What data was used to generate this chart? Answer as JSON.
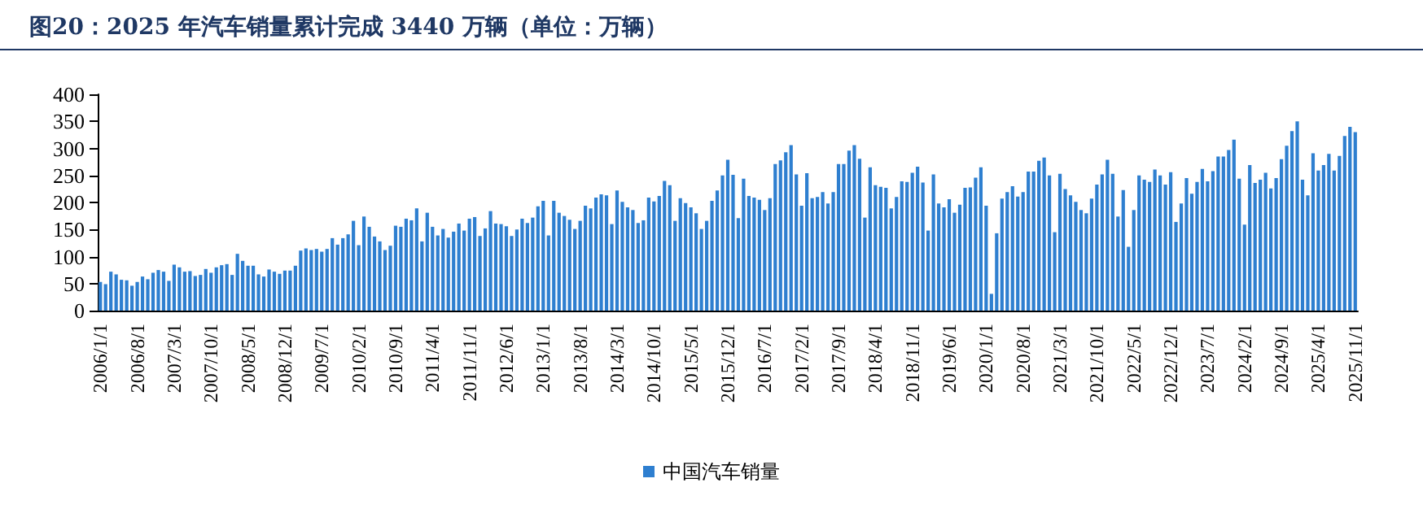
{
  "chart_data": {
    "type": "bar",
    "title": "图20：2025 年汽车销量累计完成 3440 万辆（单位：万辆）",
    "categories": [
      "2006/1/1",
      null,
      null,
      null,
      null,
      null,
      null,
      "2006/8/1",
      null,
      null,
      null,
      null,
      null,
      null,
      "2007/3/1",
      null,
      null,
      null,
      null,
      null,
      null,
      "2007/10/1",
      null,
      null,
      null,
      null,
      null,
      null,
      "2008/5/1",
      null,
      null,
      null,
      null,
      null,
      null,
      "2008/12/1",
      null,
      null,
      null,
      null,
      null,
      null,
      "2009/7/1",
      null,
      null,
      null,
      null,
      null,
      null,
      "2010/2/1",
      null,
      null,
      null,
      null,
      null,
      null,
      "2010/9/1",
      null,
      null,
      null,
      null,
      null,
      null,
      "2011/4/1",
      null,
      null,
      null,
      null,
      null,
      null,
      "2011/11/1",
      null,
      null,
      null,
      null,
      null,
      null,
      "2012/6/1",
      null,
      null,
      null,
      null,
      null,
      null,
      "2013/1/1",
      null,
      null,
      null,
      null,
      null,
      null,
      "2013/8/1",
      null,
      null,
      null,
      null,
      null,
      null,
      "2014/3/1",
      null,
      null,
      null,
      null,
      null,
      null,
      "2014/10/1",
      null,
      null,
      null,
      null,
      null,
      null,
      "2015/5/1",
      null,
      null,
      null,
      null,
      null,
      null,
      "2015/12/1",
      null,
      null,
      null,
      null,
      null,
      null,
      "2016/7/1",
      null,
      null,
      null,
      null,
      null,
      null,
      "2017/2/1",
      null,
      null,
      null,
      null,
      null,
      null,
      "2017/9/1",
      null,
      null,
      null,
      null,
      null,
      null,
      "2018/4/1",
      null,
      null,
      null,
      null,
      null,
      null,
      "2018/11/1",
      null,
      null,
      null,
      null,
      null,
      null,
      "2019/6/1",
      null,
      null,
      null,
      null,
      null,
      null,
      "2020/1/1",
      null,
      null,
      null,
      null,
      null,
      null,
      "2020/8/1",
      null,
      null,
      null,
      null,
      null,
      null,
      "2021/3/1",
      null,
      null,
      null,
      null,
      null,
      null,
      "2021/10/1",
      null,
      null,
      null,
      null,
      null,
      null,
      "2022/5/1",
      null,
      null,
      null,
      null,
      null,
      null,
      "2022/12/1",
      null,
      null,
      null,
      null,
      null,
      null,
      "2023/7/1",
      null,
      null,
      null,
      null,
      null,
      null,
      "2024/2/1",
      null,
      null,
      null,
      null,
      null,
      null,
      "2024/9/1",
      null,
      null,
      null,
      null,
      null,
      null,
      "2025/4/1",
      null,
      null,
      null,
      null,
      null,
      null,
      "2025/11/1"
    ],
    "series": [
      {
        "name": "中国汽车销量",
        "color": "#2e7fd0",
        "values": [
          53,
          49,
          72,
          67,
          57,
          56,
          46,
          53,
          63,
          58,
          70,
          75,
          72,
          55,
          85,
          80,
          72,
          73,
          64,
          66,
          77,
          70,
          80,
          84,
          86,
          66,
          105,
          92,
          83,
          83,
          67,
          63,
          76,
          72,
          68,
          74,
          74,
          83,
          111,
          115,
          112,
          114,
          109,
          114,
          134,
          122,
          134,
          141,
          166,
          121,
          174,
          155,
          137,
          128,
          112,
          120,
          157,
          155,
          170,
          167,
          189,
          128,
          181,
          155,
          139,
          151,
          135,
          146,
          161,
          148,
          170,
          173,
          138,
          152,
          184,
          161,
          160,
          156,
          138,
          150,
          170,
          162,
          172,
          193,
          203,
          139,
          203,
          181,
          175,
          168,
          151,
          166,
          194,
          189,
          209,
          215,
          213,
          160,
          222,
          201,
          191,
          186,
          162,
          167,
          209,
          202,
          212,
          240,
          232,
          166,
          208,
          199,
          191,
          180,
          151,
          166,
          203,
          222,
          250,
          279,
          251,
          171,
          244,
          212,
          209,
          205,
          186,
          208,
          271,
          278,
          293,
          306,
          252,
          194,
          254,
          208,
          210,
          219,
          198,
          219,
          271,
          271,
          296,
          306,
          281,
          172,
          265,
          232,
          229,
          227,
          189,
          210,
          239,
          238,
          255,
          266,
          237,
          148,
          252,
          198,
          191,
          206,
          181,
          196,
          227,
          228,
          246,
          265,
          194,
          31,
          143,
          207,
          219,
          230,
          211,
          219,
          257,
          257,
          277,
          283,
          250,
          145,
          253,
          225,
          213,
          201,
          186,
          180,
          207,
          233,
          252,
          279,
          253,
          174,
          223,
          118,
          186,
          250,
          242,
          238,
          261,
          250,
          233,
          256,
          164,
          198,
          245,
          216,
          238,
          262,
          239,
          258,
          285,
          285,
          297,
          316,
          244,
          159,
          269,
          236,
          242,
          255,
          226,
          245,
          280,
          305,
          332,
          350,
          242,
          213,
          291,
          259,
          269,
          290,
          259,
          286,
          323,
          340,
          330
        ]
      }
    ],
    "ylim": [
      0,
      400
    ],
    "yticks": [
      0,
      50,
      100,
      150,
      200,
      250,
      300,
      350,
      400
    ],
    "grid": false,
    "legend": "bottom"
  }
}
